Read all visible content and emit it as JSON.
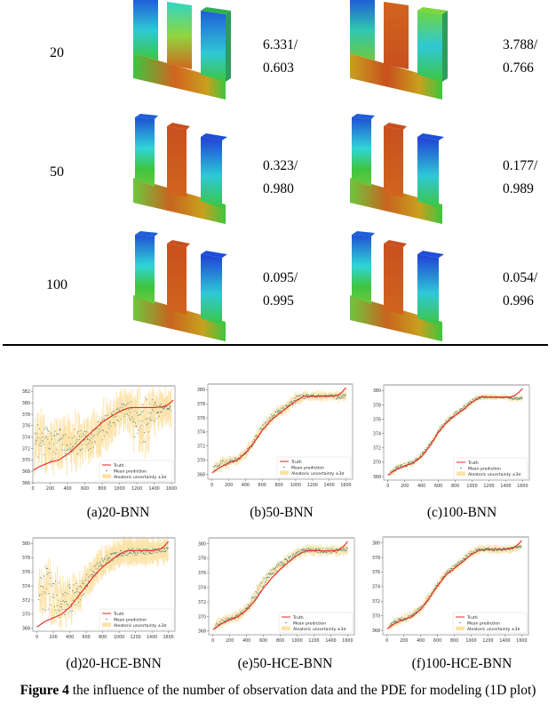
{
  "table": {
    "rows": [
      {
        "n_obs": "20",
        "bnn_metric_1": "6.331/",
        "bnn_metric_2": "0.603",
        "hce_metric_1": "3.788/",
        "hce_metric_2": "0.766"
      },
      {
        "n_obs": "50",
        "bnn_metric_1": "0.323/",
        "bnn_metric_2": "0.980",
        "hce_metric_1": "0.177/",
        "hce_metric_2": "0.989"
      },
      {
        "n_obs": "100",
        "bnn_metric_1": "0.095/",
        "bnn_metric_2": "0.995",
        "hce_metric_1": "0.054/",
        "hce_metric_2": "0.996"
      }
    ],
    "colormap": {
      "blue": "#1f4fd6",
      "cyan": "#2fd6d6",
      "green": "#3ec53e",
      "yellow": "#e6d21e",
      "orange": "#d2641e",
      "red": "#b93c14"
    }
  },
  "subcaptions": [
    "(a)20-BNN",
    "(b)50-BNN",
    "(c)100-BNN",
    "(d)20-HCE-BNN",
    "(e)50-HCE-BNN",
    "(f)100-HCE-BNN"
  ],
  "figure_caption": {
    "label": "Figure 4",
    "text": " the influence of the number of observation data and the PDE for modeling (1D plot)"
  },
  "legend": {
    "truth": "Truth",
    "mean": "Mean prediction",
    "uncertainty": "Aleatoric  uncertainty ±3σ"
  },
  "colors": {
    "truth": "#e8231e",
    "mean": "#2f7a8a",
    "uncertainty": "#fde2a6",
    "frame": "#9a9a9a"
  },
  "chart_data": [
    {
      "id": "a",
      "title": "(a)20-BNN",
      "type": "line",
      "xlim": [
        0,
        1640
      ],
      "ylim": [
        366,
        383
      ],
      "xticks": [
        0,
        200,
        400,
        600,
        800,
        1000,
        1200,
        1400,
        1600
      ],
      "yticks": [
        366,
        368,
        370,
        372,
        374,
        376,
        378,
        380,
        382
      ],
      "series": [
        {
          "name": "Truth",
          "x": [
            0,
            100,
            200,
            300,
            400,
            500,
            600,
            700,
            800,
            900,
            1000,
            1100,
            1150,
            1200,
            1300,
            1400,
            1500,
            1550,
            1600,
            1620
          ],
          "y": [
            368.2,
            369.0,
            369.6,
            370.0,
            371.0,
            372.3,
            373.8,
            375.2,
            376.6,
            377.6,
            378.5,
            379.1,
            379.2,
            379.2,
            379.2,
            379.2,
            379.3,
            379.6,
            380.2,
            380.5
          ]
        },
        {
          "name": "Mean prediction",
          "x": [
            0,
            100,
            200,
            300,
            400,
            500,
            600,
            700,
            800,
            900,
            1000,
            1100,
            1200,
            1300,
            1400,
            1500,
            1600
          ],
          "y": [
            372.0,
            373.5,
            372.5,
            373.0,
            373.0,
            373.2,
            373.3,
            374.0,
            375.5,
            377.0,
            378.3,
            379.0,
            376.5,
            377.0,
            378.5,
            379.1,
            379.1
          ],
          "spread": [
            3.5,
            4.0,
            3.0,
            2.6,
            2.2,
            2.2,
            2.0,
            2.0,
            2.0,
            2.0,
            1.5,
            1.0,
            4.0,
            4.0,
            2.0,
            0.6,
            0.5
          ]
        },
        {
          "name": "Aleatoric uncertainty ±3σ",
          "band": 2.5
        }
      ]
    },
    {
      "id": "b",
      "title": "(b)50-BNN",
      "type": "line",
      "xlim": [
        -50,
        1680
      ],
      "ylim": [
        367.3,
        380.8
      ],
      "xticks": [
        0,
        200,
        400,
        600,
        800,
        1000,
        1200,
        1400,
        1600
      ],
      "yticks": [
        368,
        370,
        372,
        374,
        376,
        378,
        380
      ],
      "series": [
        {
          "name": "Truth",
          "x": [
            0,
            100,
            200,
            300,
            400,
            500,
            600,
            700,
            800,
            900,
            1000,
            1100,
            1200,
            1300,
            1400,
            1500,
            1550,
            1600
          ],
          "y": [
            368.2,
            369.0,
            369.6,
            370.0,
            371.0,
            372.5,
            374.2,
            375.6,
            376.6,
            377.5,
            378.4,
            379.1,
            379.1,
            379.1,
            379.1,
            379.2,
            379.6,
            380.3
          ]
        },
        {
          "name": "Mean prediction",
          "x": [
            0,
            100,
            200,
            300,
            400,
            500,
            600,
            700,
            800,
            900,
            1000,
            1100,
            1200,
            1300,
            1400,
            1500,
            1600
          ],
          "y": [
            368.5,
            369.4,
            369.7,
            370.1,
            371.0,
            372.6,
            374.5,
            375.9,
            376.9,
            377.7,
            378.6,
            379.1,
            379.1,
            379.1,
            379.1,
            379.0,
            379.2
          ],
          "spread": [
            0.4,
            0.5,
            0.3,
            0.3,
            0.3,
            0.4,
            0.5,
            0.5,
            0.5,
            0.5,
            0.5,
            0.4,
            0.2,
            0.2,
            0.2,
            0.4,
            0.3
          ]
        },
        {
          "name": "Aleatoric uncertainty ±3σ",
          "band": 0.5
        }
      ]
    },
    {
      "id": "c",
      "title": "(c)100-BNN",
      "type": "line",
      "xlim": [
        -50,
        1680
      ],
      "ylim": [
        367.5,
        380.8
      ],
      "xticks": [
        0,
        200,
        400,
        600,
        800,
        1000,
        1200,
        1400,
        1600
      ],
      "yticks": [
        368,
        370,
        372,
        374,
        376,
        378,
        380
      ],
      "series": [
        {
          "name": "Truth",
          "x": [
            0,
            100,
            200,
            300,
            400,
            500,
            600,
            700,
            800,
            900,
            1000,
            1100,
            1200,
            1300,
            1400,
            1450,
            1500,
            1550,
            1600
          ],
          "y": [
            368.2,
            369.0,
            369.5,
            369.9,
            370.8,
            372.3,
            374.2,
            375.6,
            376.6,
            377.4,
            378.4,
            379.1,
            379.1,
            379.1,
            379.1,
            379.1,
            379.3,
            379.7,
            380.3
          ]
        },
        {
          "name": "Mean prediction",
          "x": [
            0,
            100,
            200,
            300,
            400,
            500,
            600,
            700,
            800,
            900,
            1000,
            1100,
            1200,
            1300,
            1400,
            1500,
            1600
          ],
          "y": [
            368.3,
            369.1,
            369.6,
            370.0,
            370.9,
            372.4,
            374.3,
            375.7,
            376.7,
            377.5,
            378.5,
            379.1,
            379.1,
            379.1,
            379.1,
            378.9,
            379.0
          ],
          "spread": [
            0.3,
            0.3,
            0.3,
            0.3,
            0.3,
            0.3,
            0.3,
            0.3,
            0.3,
            0.3,
            0.3,
            0.2,
            0.1,
            0.1,
            0.1,
            0.2,
            0.2
          ]
        },
        {
          "name": "Aleatoric uncertainty ±3σ",
          "band": 0.3
        }
      ]
    },
    {
      "id": "d",
      "title": "(d)20-HCE-BNN",
      "type": "line",
      "xlim": [
        -50,
        1680
      ],
      "ylim": [
        367.6,
        380.8
      ],
      "xticks": [
        0,
        200,
        400,
        600,
        800,
        1000,
        1200,
        1400,
        1600
      ],
      "yticks": [
        368,
        370,
        372,
        374,
        376,
        378,
        380
      ],
      "series": [
        {
          "name": "Truth",
          "x": [
            0,
            100,
            200,
            300,
            400,
            500,
            600,
            700,
            800,
            900,
            1000,
            1100,
            1200,
            1300,
            1400,
            1500,
            1550,
            1600
          ],
          "y": [
            368.2,
            369.0,
            369.5,
            370.0,
            371.0,
            372.5,
            374.0,
            375.5,
            376.7,
            377.6,
            378.5,
            379.0,
            379.0,
            379.0,
            379.0,
            379.2,
            379.6,
            380.3
          ]
        },
        {
          "name": "Mean prediction",
          "x": [
            0,
            100,
            200,
            300,
            400,
            500,
            600,
            700,
            800,
            900,
            1000,
            1100,
            1200,
            1300,
            1400,
            1500,
            1600
          ],
          "y": [
            374.0,
            373.5,
            372.5,
            372.0,
            372.0,
            373.0,
            374.5,
            376.2,
            377.2,
            378.0,
            378.6,
            378.9,
            378.8,
            378.9,
            378.9,
            379.0,
            379.2
          ],
          "spread": [
            1.8,
            3.5,
            3.0,
            2.5,
            2.2,
            1.5,
            1.3,
            1.0,
            0.8,
            0.6,
            0.5,
            0.5,
            0.5,
            0.5,
            0.4,
            0.3,
            0.3
          ]
        },
        {
          "name": "Aleatoric uncertainty ±3σ",
          "band": 1.5
        }
      ]
    },
    {
      "id": "e",
      "title": "(e)50-HCE-BNN",
      "type": "line",
      "xlim": [
        -50,
        1680
      ],
      "ylim": [
        367.5,
        380.8
      ],
      "xticks": [
        0,
        200,
        400,
        600,
        800,
        1000,
        1200,
        1400,
        1600
      ],
      "yticks": [
        368,
        370,
        372,
        374,
        376,
        378,
        380
      ],
      "series": [
        {
          "name": "Truth",
          "x": [
            0,
            100,
            200,
            300,
            400,
            500,
            600,
            700,
            800,
            900,
            1000,
            1100,
            1200,
            1300,
            1400,
            1500,
            1550,
            1600
          ],
          "y": [
            368.2,
            369.0,
            369.6,
            370.0,
            370.9,
            372.2,
            373.9,
            375.3,
            376.5,
            377.5,
            378.4,
            379.0,
            379.1,
            379.0,
            379.0,
            379.2,
            379.6,
            380.3
          ]
        },
        {
          "name": "Mean prediction",
          "x": [
            0,
            100,
            200,
            300,
            400,
            500,
            600,
            700,
            800,
            900,
            1000,
            1100,
            1200,
            1300,
            1400,
            1500,
            1600
          ],
          "y": [
            368.5,
            369.2,
            369.7,
            370.1,
            371.0,
            372.8,
            374.8,
            376.1,
            377.0,
            377.9,
            378.6,
            379.1,
            379.1,
            379.0,
            379.0,
            379.1,
            379.2
          ],
          "spread": [
            0.3,
            0.3,
            0.3,
            0.3,
            0.3,
            0.6,
            0.6,
            0.5,
            0.5,
            0.4,
            0.4,
            0.3,
            0.3,
            0.3,
            0.3,
            0.3,
            0.3
          ]
        },
        {
          "name": "Aleatoric uncertainty ±3σ",
          "band": 0.5
        }
      ]
    },
    {
      "id": "f",
      "title": "(f)100-HCE-BNN",
      "type": "line",
      "xlim": [
        -50,
        1680
      ],
      "ylim": [
        367.4,
        380.8
      ],
      "xticks": [
        0,
        200,
        400,
        600,
        800,
        1000,
        1200,
        1400,
        1600
      ],
      "yticks": [
        368,
        370,
        372,
        374,
        376,
        378,
        380
      ],
      "series": [
        {
          "name": "Truth",
          "x": [
            0,
            100,
            200,
            300,
            400,
            500,
            600,
            700,
            800,
            900,
            1000,
            1100,
            1200,
            1300,
            1400,
            1500,
            1550,
            1600
          ],
          "y": [
            368.2,
            369.0,
            369.5,
            369.9,
            370.9,
            372.4,
            374.1,
            375.6,
            376.5,
            377.4,
            378.4,
            379.0,
            379.1,
            379.1,
            379.1,
            379.3,
            379.7,
            380.3
          ]
        },
        {
          "name": "Mean prediction",
          "x": [
            0,
            100,
            200,
            300,
            400,
            500,
            600,
            700,
            800,
            900,
            1000,
            1100,
            1200,
            1300,
            1400,
            1500,
            1600
          ],
          "y": [
            368.4,
            369.2,
            369.6,
            370.0,
            371.0,
            372.5,
            374.2,
            375.7,
            376.7,
            377.6,
            378.6,
            379.1,
            379.1,
            379.1,
            379.1,
            379.3,
            379.5
          ],
          "spread": [
            0.3,
            0.3,
            0.3,
            0.3,
            0.3,
            0.3,
            0.3,
            0.3,
            0.3,
            0.3,
            0.3,
            0.2,
            0.2,
            0.2,
            0.2,
            0.2,
            0.2
          ]
        },
        {
          "name": "Aleatoric uncertainty ±3σ",
          "band": 0.4
        }
      ]
    }
  ]
}
